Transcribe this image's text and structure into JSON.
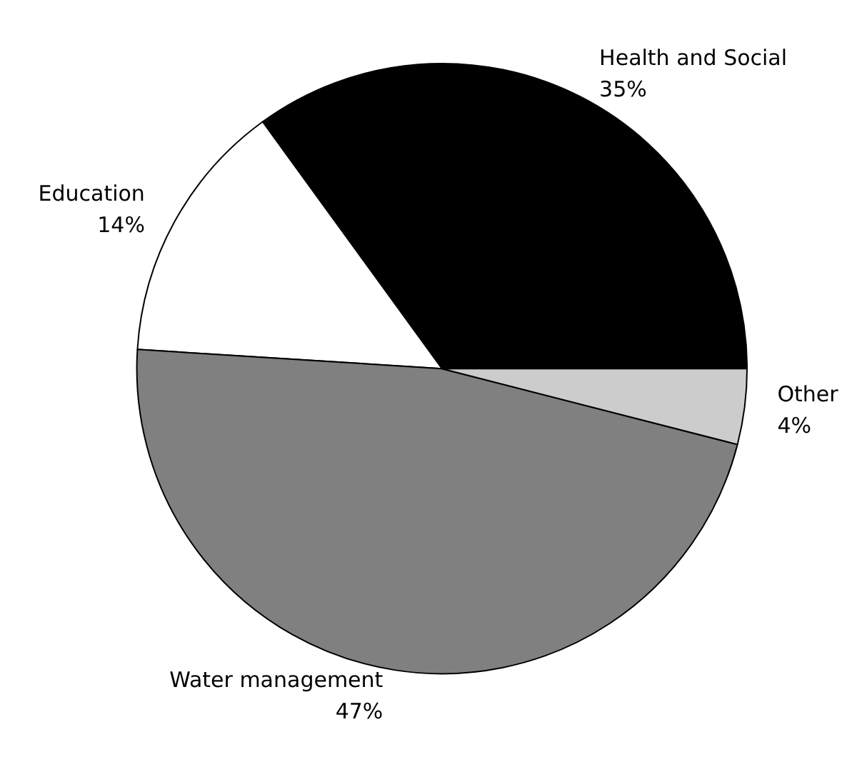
{
  "chart_data": {
    "type": "pie",
    "categories": [
      "Health and Social",
      "Education",
      "Water management",
      "Other"
    ],
    "values": [
      35,
      14,
      47,
      4
    ],
    "colors": [
      "#000000",
      "#ffffff",
      "#808080",
      "#cccccc"
    ],
    "value_labels": [
      "35%",
      "14%",
      "47%",
      "4%"
    ],
    "legend": false
  }
}
